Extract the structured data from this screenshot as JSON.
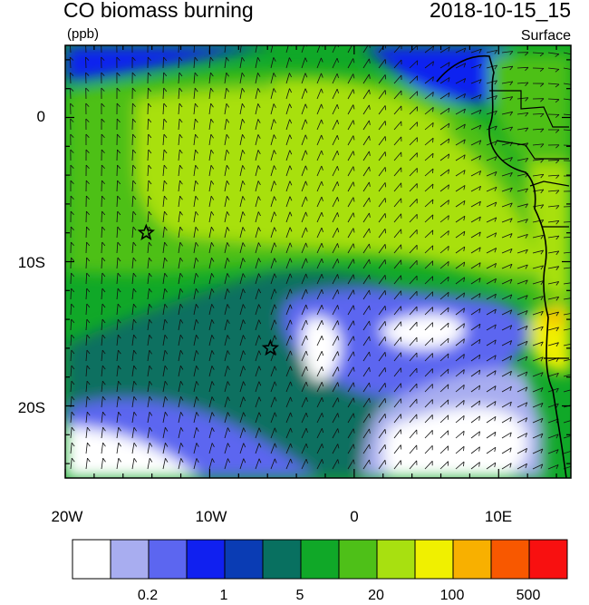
{
  "header": {
    "title": "CO biomass burning",
    "units": "(ppb)",
    "time": "2018-10-15_15",
    "level": "Surface"
  },
  "axes": {
    "lat_labels": [
      "0",
      "10S",
      "20S"
    ],
    "lon_labels": [
      "20W",
      "10W",
      "0",
      "10E"
    ]
  },
  "legend": {
    "colors": [
      "#ffffff",
      "#a8adf0",
      "#5c66f0",
      "#1020f0",
      "#0a3cb4",
      "#087060",
      "#10a828",
      "#4ec018",
      "#a8e010",
      "#f0f000",
      "#f8b000",
      "#f85800",
      "#f81010"
    ],
    "labels": [
      "0.2",
      "1",
      "5",
      "20",
      "100",
      "500"
    ]
  },
  "markers": [
    {
      "name": "star-marker-north",
      "lon": -14.4,
      "lat": -8.0
    },
    {
      "name": "star-marker-south",
      "lon": -5.8,
      "lat": -16.0
    }
  ],
  "map": {
    "lon_range": [
      -20,
      15
    ],
    "lat_range": [
      -25,
      5
    ]
  }
}
